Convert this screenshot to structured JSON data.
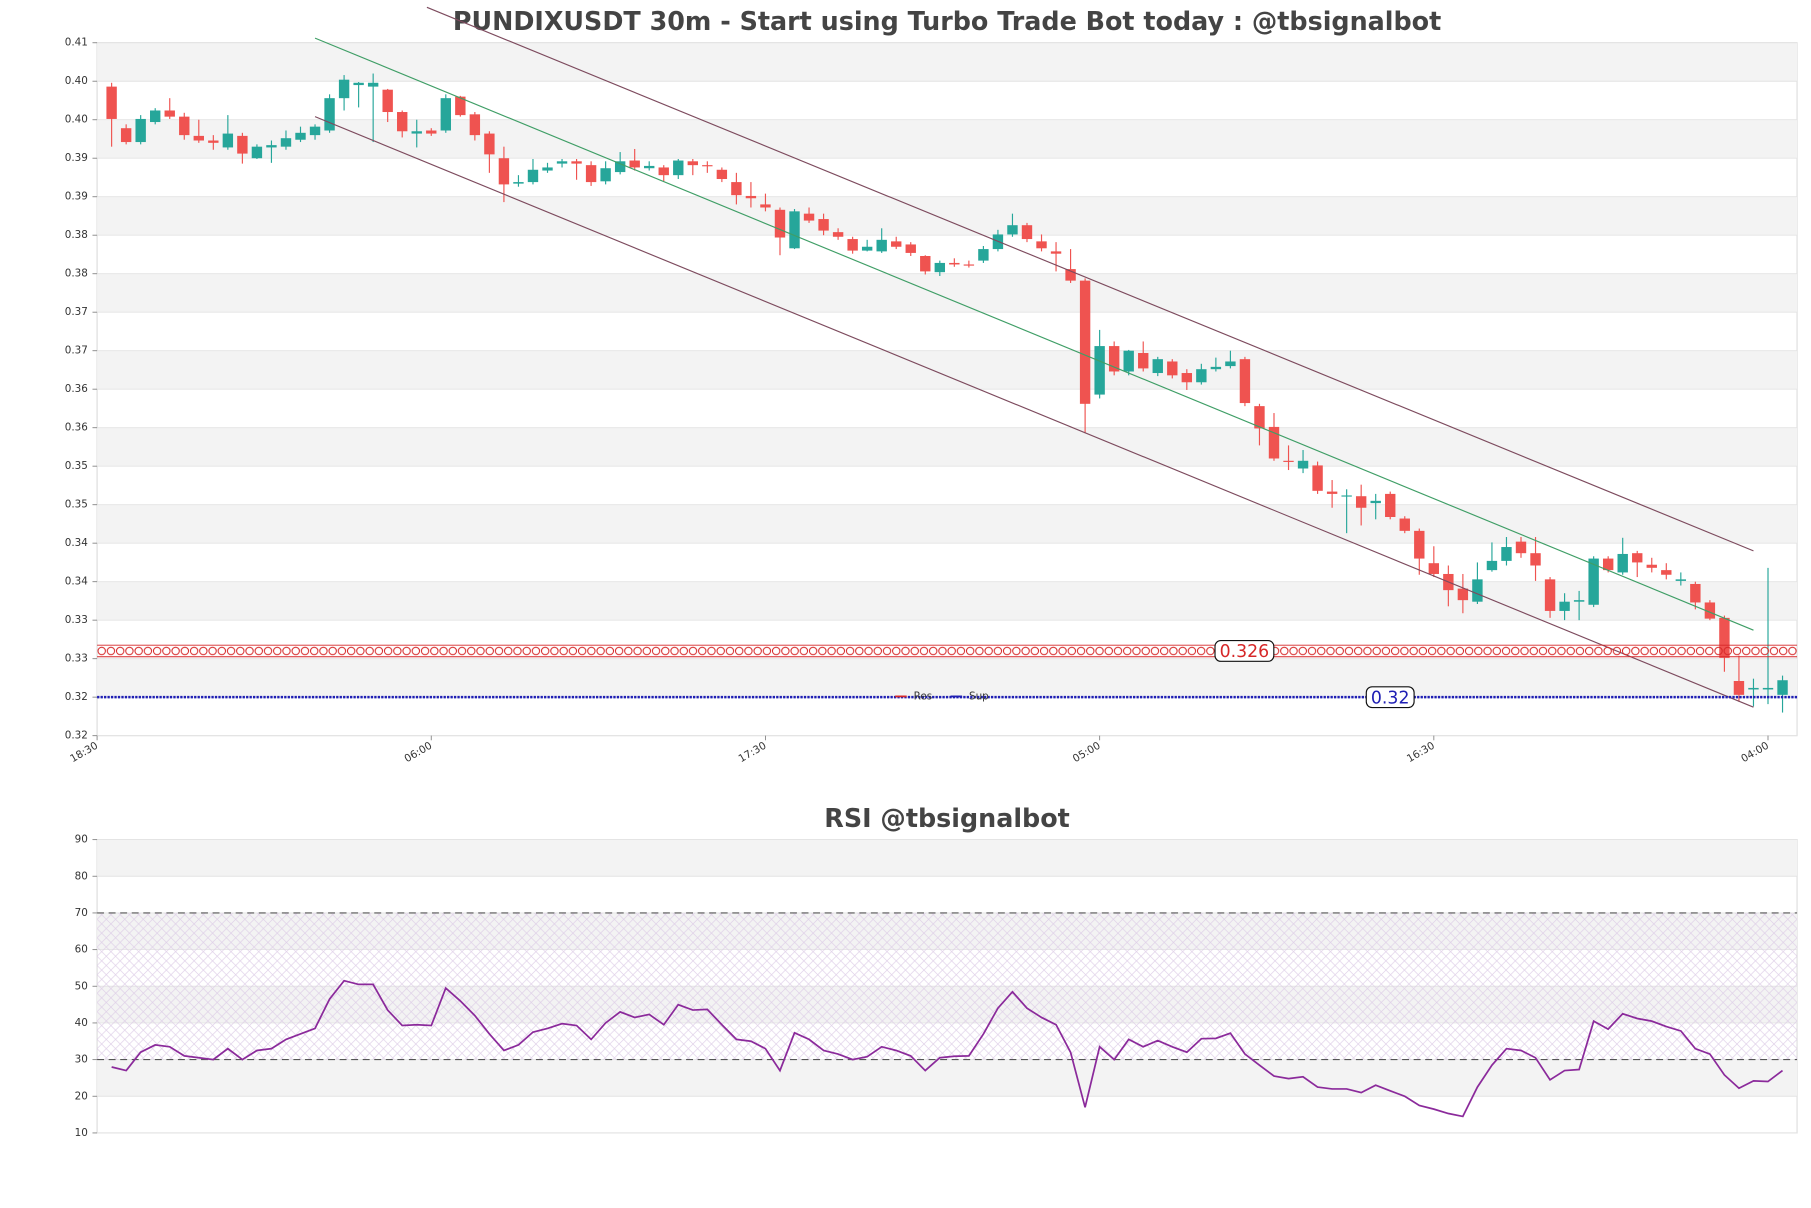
{
  "chart_data": [
    {
      "type": "candlestick",
      "title": "PUNDIXUSDT 30m - Start using Turbo Trade Bot today : @tbsignalbot",
      "up_color": "#26a69a",
      "down_color": "#ef5350",
      "open": [
        0.3993,
        0.3939,
        0.3921,
        0.3947,
        0.3962,
        0.3954,
        0.3929,
        0.3923,
        0.3914,
        0.3929,
        0.39,
        0.3914,
        0.3915,
        0.3924,
        0.393,
        0.3936,
        0.3978,
        0.3995,
        0.3993,
        0.3989,
        0.396,
        0.3932,
        0.3936,
        0.3936,
        0.398,
        0.3957,
        0.3932,
        0.39,
        0.3867,
        0.3869,
        0.3884,
        0.3893,
        0.3896,
        0.3891,
        0.387,
        0.3882,
        0.3897,
        0.3887,
        0.3888,
        0.3878,
        0.3896,
        0.3891,
        0.3885,
        0.3869,
        0.3851,
        0.384,
        0.3833,
        0.3783,
        0.3828,
        0.3821,
        0.3804,
        0.3795,
        0.378,
        0.3779,
        0.3792,
        0.3788,
        0.3773,
        0.3752,
        0.3764,
        0.3762,
        0.3767,
        0.3782,
        0.3801,
        0.3813,
        0.3792,
        0.3779,
        0.3756,
        0.3741,
        0.3593,
        0.3656,
        0.3623,
        0.3647,
        0.3621,
        0.3636,
        0.3621,
        0.3609,
        0.3626,
        0.363,
        0.3639,
        0.3578,
        0.3551,
        0.3507,
        0.3497,
        0.3501,
        0.3467,
        0.3461,
        0.3461,
        0.3452,
        0.3464,
        0.3432,
        0.3416,
        0.3374,
        0.336,
        0.3341,
        0.3324,
        0.3365,
        0.3377,
        0.3402,
        0.3387,
        0.3353,
        0.3312,
        0.3324,
        0.332,
        0.338,
        0.3362,
        0.3387,
        0.3372,
        0.3365,
        0.3351,
        0.3347,
        0.3323,
        0.3303,
        0.3221,
        0.321,
        0.321,
        0.3203
      ],
      "high": [
        0.3998,
        0.3944,
        0.3956,
        0.3965,
        0.3978,
        0.3959,
        0.395,
        0.393,
        0.3956,
        0.3933,
        0.3918,
        0.3923,
        0.3936,
        0.3941,
        0.3944,
        0.3983,
        0.4008,
        0.3999,
        0.401,
        0.399,
        0.3962,
        0.395,
        0.3939,
        0.3983,
        0.3981,
        0.396,
        0.3935,
        0.3915,
        0.3878,
        0.3899,
        0.3894,
        0.3899,
        0.3899,
        0.3896,
        0.3896,
        0.3908,
        0.3912,
        0.3896,
        0.3891,
        0.3899,
        0.3899,
        0.3896,
        0.3888,
        0.3881,
        0.3869,
        0.3854,
        0.3836,
        0.3834,
        0.3836,
        0.3828,
        0.3809,
        0.3798,
        0.3794,
        0.3809,
        0.3798,
        0.3791,
        0.3774,
        0.3767,
        0.377,
        0.3767,
        0.3786,
        0.3807,
        0.3828,
        0.3816,
        0.3801,
        0.3791,
        0.3782,
        0.3744,
        0.3677,
        0.3662,
        0.3651,
        0.3662,
        0.3642,
        0.3639,
        0.3626,
        0.3633,
        0.3641,
        0.365,
        0.3642,
        0.3581,
        0.3569,
        0.3527,
        0.3521,
        0.3506,
        0.3482,
        0.347,
        0.3476,
        0.3464,
        0.3467,
        0.3435,
        0.3419,
        0.3396,
        0.3371,
        0.336,
        0.3375,
        0.3401,
        0.3408,
        0.3408,
        0.3408,
        0.3356,
        0.3335,
        0.3338,
        0.3383,
        0.3383,
        0.3407,
        0.339,
        0.3381,
        0.3374,
        0.3362,
        0.335,
        0.3326,
        0.3306,
        0.3254,
        0.3224,
        0.3368,
        0.3228
      ],
      "low": [
        0.3915,
        0.3918,
        0.3918,
        0.3944,
        0.3951,
        0.3924,
        0.392,
        0.3911,
        0.3911,
        0.3893,
        0.3899,
        0.3894,
        0.3911,
        0.3921,
        0.3924,
        0.3933,
        0.3962,
        0.3966,
        0.3921,
        0.3947,
        0.3927,
        0.3914,
        0.3929,
        0.3933,
        0.3954,
        0.3923,
        0.3881,
        0.3843,
        0.3863,
        0.3866,
        0.3881,
        0.3888,
        0.3872,
        0.3864,
        0.3866,
        0.3879,
        0.3884,
        0.3884,
        0.387,
        0.3873,
        0.3878,
        0.3881,
        0.3869,
        0.384,
        0.3836,
        0.3831,
        0.3774,
        0.3782,
        0.3816,
        0.38,
        0.3794,
        0.3776,
        0.3779,
        0.3777,
        0.3782,
        0.3773,
        0.3749,
        0.3747,
        0.3759,
        0.3758,
        0.3764,
        0.3779,
        0.3798,
        0.3791,
        0.3779,
        0.3753,
        0.3738,
        0.3543,
        0.3588,
        0.3618,
        0.3618,
        0.3623,
        0.3617,
        0.3614,
        0.3599,
        0.3606,
        0.3623,
        0.3627,
        0.3578,
        0.3527,
        0.3507,
        0.3495,
        0.3491,
        0.3464,
        0.3446,
        0.3413,
        0.3423,
        0.3431,
        0.3431,
        0.3413,
        0.3359,
        0.3356,
        0.3318,
        0.3309,
        0.3321,
        0.3363,
        0.3371,
        0.3381,
        0.3351,
        0.3303,
        0.33,
        0.33,
        0.3317,
        0.3362,
        0.3359,
        0.3356,
        0.3362,
        0.3353,
        0.3345,
        0.3314,
        0.33,
        0.3233,
        0.3194,
        0.3188,
        0.3191,
        0.318
      ],
      "close": [
        0.3951,
        0.3921,
        0.3951,
        0.3962,
        0.3954,
        0.393,
        0.3923,
        0.392,
        0.3932,
        0.3906,
        0.3915,
        0.3917,
        0.3926,
        0.3933,
        0.3941,
        0.3978,
        0.4002,
        0.3998,
        0.3998,
        0.396,
        0.3935,
        0.3935,
        0.3932,
        0.3978,
        0.3956,
        0.393,
        0.3905,
        0.3866,
        0.3869,
        0.3885,
        0.3888,
        0.3896,
        0.3893,
        0.3869,
        0.3887,
        0.3896,
        0.3888,
        0.389,
        0.3878,
        0.3897,
        0.3891,
        0.3891,
        0.3873,
        0.3852,
        0.3848,
        0.3836,
        0.3797,
        0.3831,
        0.3819,
        0.3806,
        0.3798,
        0.378,
        0.3785,
        0.3794,
        0.3785,
        0.3777,
        0.3753,
        0.3764,
        0.3762,
        0.3762,
        0.3782,
        0.3801,
        0.3813,
        0.3795,
        0.3783,
        0.3776,
        0.3741,
        0.3581,
        0.3656,
        0.3623,
        0.365,
        0.3627,
        0.3639,
        0.3618,
        0.3609,
        0.3626,
        0.3629,
        0.3636,
        0.3582,
        0.3549,
        0.351,
        0.3506,
        0.3507,
        0.3468,
        0.3464,
        0.3462,
        0.3446,
        0.3455,
        0.3434,
        0.3416,
        0.338,
        0.336,
        0.3339,
        0.3326,
        0.3353,
        0.3377,
        0.3395,
        0.3387,
        0.3371,
        0.3312,
        0.3324,
        0.3326,
        0.338,
        0.3365,
        0.3386,
        0.3375,
        0.3368,
        0.3359,
        0.3353,
        0.3323,
        0.3302,
        0.3251,
        0.3203,
        0.3212,
        0.3212,
        0.3222
      ],
      "ylim": [
        0.315,
        0.405
      ],
      "yticks": [
        {
          "value": 0.315,
          "label": "0.32"
        },
        {
          "value": 0.32,
          "label": "0.32"
        },
        {
          "value": 0.325,
          "label": "0.33"
        },
        {
          "value": 0.33,
          "label": "0.33"
        },
        {
          "value": 0.335,
          "label": "0.34"
        },
        {
          "value": 0.34,
          "label": "0.34"
        },
        {
          "value": 0.345,
          "label": "0.35"
        },
        {
          "value": 0.35,
          "label": "0.35"
        },
        {
          "value": 0.355,
          "label": "0.36"
        },
        {
          "value": 0.36,
          "label": "0.36"
        },
        {
          "value": 0.365,
          "label": "0.37"
        },
        {
          "value": 0.37,
          "label": "0.37"
        },
        {
          "value": 0.375,
          "label": "0.38"
        },
        {
          "value": 0.38,
          "label": "0.38"
        },
        {
          "value": 0.385,
          "label": "0.39"
        },
        {
          "value": 0.39,
          "label": "0.39"
        },
        {
          "value": 0.395,
          "label": "0.40"
        },
        {
          "value": 0.4,
          "label": "0.40"
        },
        {
          "value": 0.405,
          "label": "0.41"
        }
      ],
      "xlim": [
        -1,
        116
      ],
      "xticks": [
        {
          "value": -1,
          "label": "18:30"
        },
        {
          "value": 22,
          "label": "06:00"
        },
        {
          "value": 45,
          "label": "17:30"
        },
        {
          "value": 68,
          "label": "05:00"
        },
        {
          "value": 91,
          "label": "16:30"
        },
        {
          "value": 114,
          "label": "04:00"
        }
      ],
      "trend_lines": [
        {
          "color": "#3f9e66",
          "x": [
            14,
            113
          ],
          "y": [
            0.4056,
            0.3287
          ]
        },
        {
          "color": "#7d4b5e",
          "x": [
            21.7,
            113
          ],
          "y": [
            0.4096,
            0.339
          ]
        },
        {
          "color": "#7d4b5e",
          "x": [
            14,
            113
          ],
          "y": [
            0.3954,
            0.3187
          ]
        }
      ],
      "levels": [
        {
          "name": "Res",
          "value": 0.326,
          "color": "#d62728"
        },
        {
          "name": "Sup",
          "value": 0.32,
          "color": "#1f1fb4"
        }
      ],
      "legend": "lower center"
    },
    {
      "type": "line",
      "title": "RSI @tbsignalbot",
      "color": "#8b2a9b",
      "values": [
        28,
        27,
        32,
        34,
        33.5,
        31,
        30.5,
        30,
        33,
        30,
        32.5,
        33,
        35.5,
        37,
        38.5,
        46.5,
        51.5,
        50.5,
        50.5,
        43.5,
        39.3,
        39.5,
        39.3,
        49.5,
        46,
        42,
        37,
        32.5,
        34,
        37.5,
        38.5,
        39.8,
        39.3,
        35.5,
        40,
        43,
        41.5,
        42.3,
        39.5,
        45,
        43.5,
        43.7,
        39.5,
        35.5,
        35,
        33,
        27,
        37.3,
        35.5,
        32.5,
        31.5,
        30,
        30.8,
        33.5,
        32.5,
        31,
        27,
        30.5,
        30.9,
        31,
        37,
        44,
        48.5,
        44,
        41.5,
        39.5,
        32,
        17,
        33.5,
        30,
        35.5,
        33.5,
        35.2,
        33.5,
        32,
        35.7,
        35.8,
        37.2,
        31.5,
        28.5,
        25.5,
        24.8,
        25.3,
        22.5,
        22,
        22,
        21,
        23,
        21.5,
        20,
        17.5,
        16.5,
        15.3,
        14.5,
        22.5,
        28.5,
        33,
        32.5,
        30.5,
        24.5,
        27,
        27.3,
        40.5,
        38.3,
        42.5,
        41.2,
        40.5,
        39,
        37.8,
        33,
        31.5,
        25.8,
        22.2,
        24.2,
        24,
        27
      ],
      "ylim": [
        10,
        90
      ],
      "yticks": [
        10,
        20,
        30,
        40,
        50,
        60,
        70,
        80,
        90
      ],
      "xlim": [
        -1,
        116
      ],
      "levels": [
        70,
        30
      ],
      "band": [
        30,
        70
      ]
    }
  ]
}
